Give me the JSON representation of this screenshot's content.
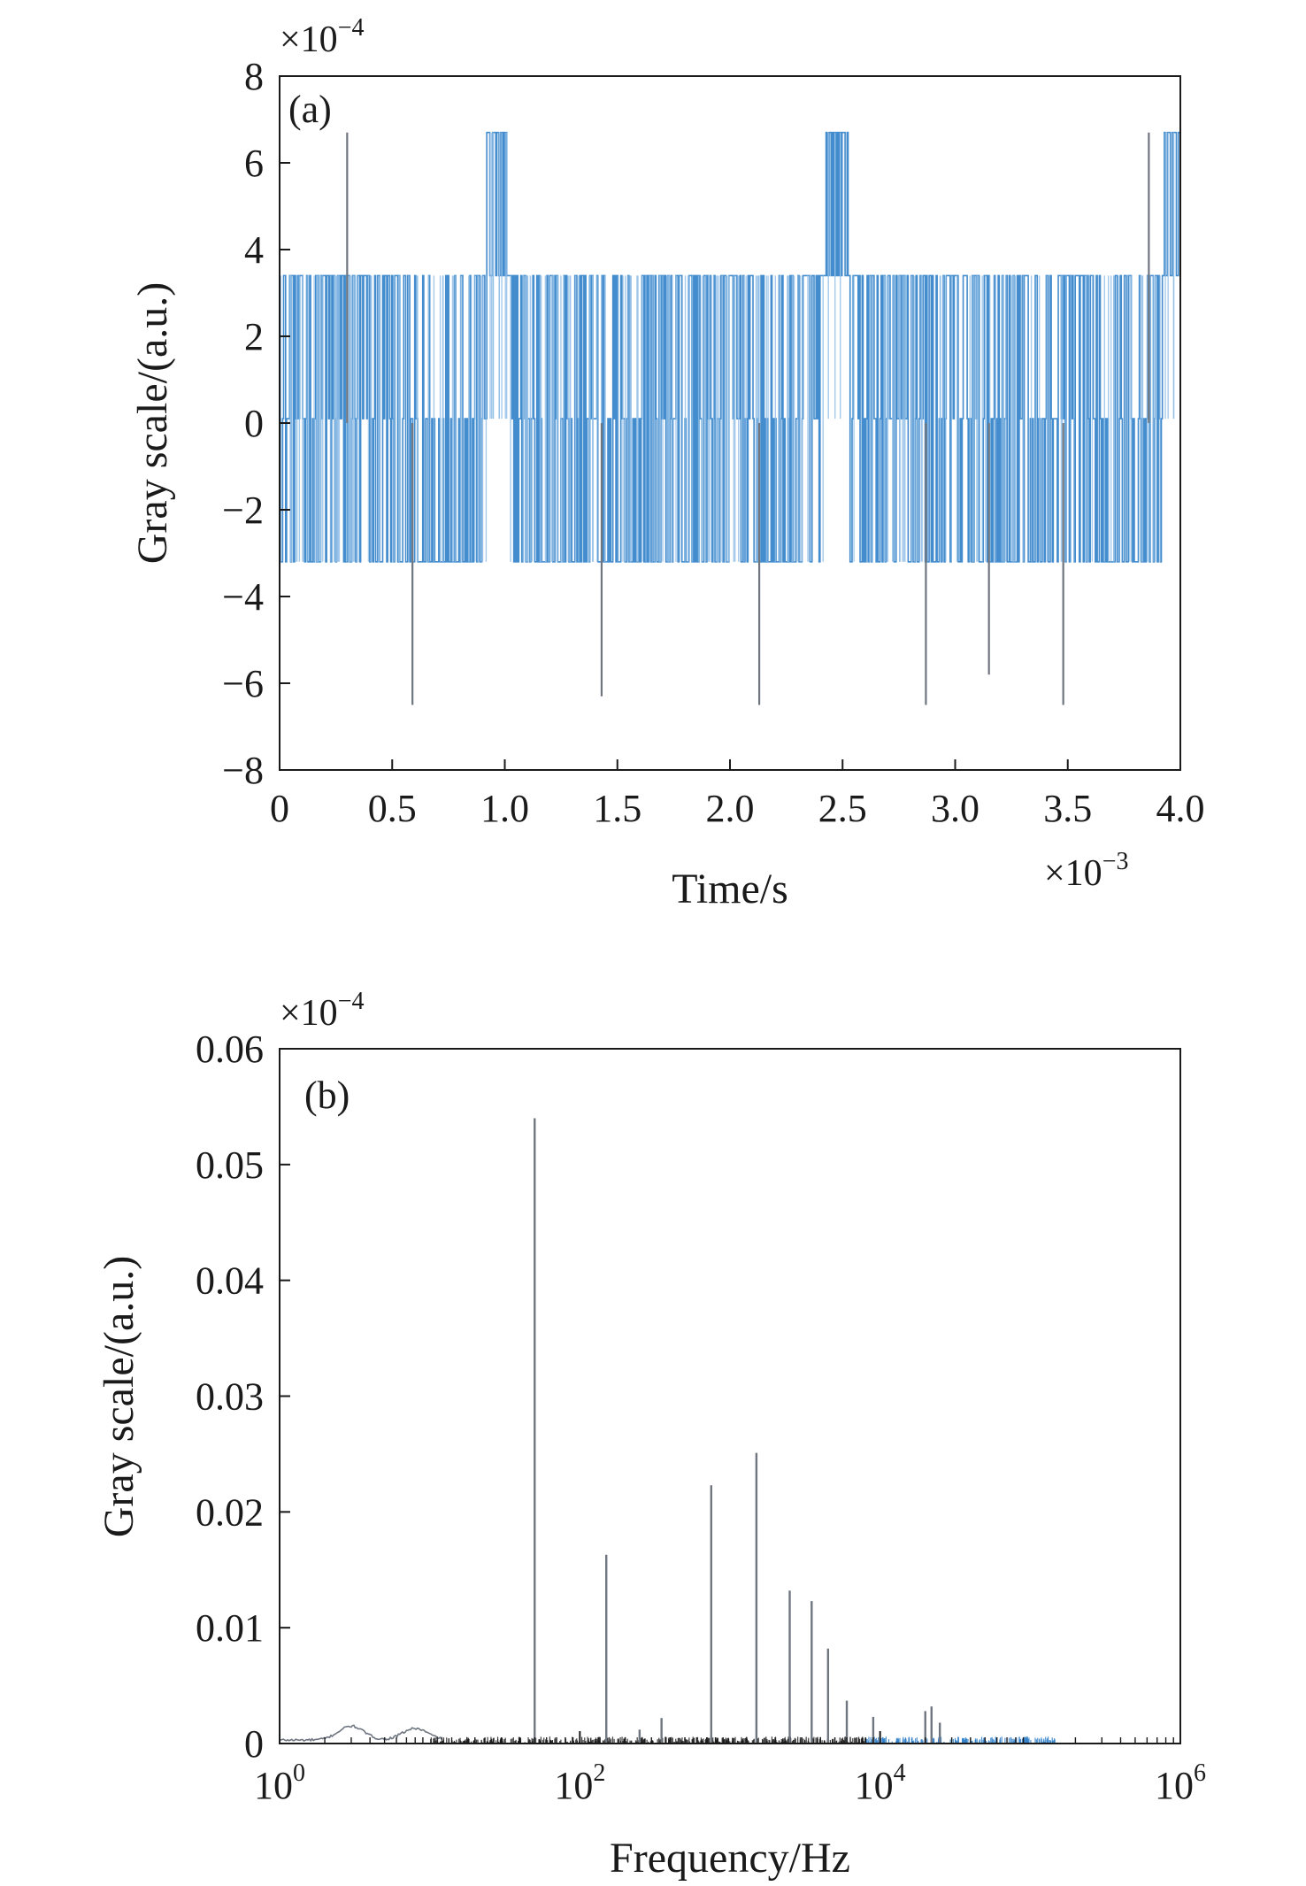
{
  "figure": {
    "colors": {
      "signal": "#2f7fc8",
      "signal_light": "#8fbde6",
      "spike": "#6f7680",
      "axis": "#1a1a1a"
    }
  },
  "chart_data": [
    {
      "type": "line",
      "panel_label": "(a)",
      "xlabel": "Time/s",
      "ylabel": "Gray scale/(a.u.)",
      "x_multiplier": {
        "base": "×10",
        "exp": "−3"
      },
      "y_multiplier": {
        "base": "×10",
        "exp": "−4"
      },
      "xlim": [
        0,
        4.0
      ],
      "ylim": [
        -8,
        8
      ],
      "xticks": [
        0,
        0.5,
        1.0,
        1.5,
        2.0,
        2.5,
        3.0,
        3.5,
        4.0
      ],
      "xtick_labels": [
        "0",
        "0.5",
        "1.0",
        "1.5",
        "2.0",
        "2.5",
        "3.0",
        "3.5",
        "4.0"
      ],
      "yticks": [
        -8,
        -6,
        -4,
        -2,
        0,
        2,
        4,
        6,
        8
      ],
      "ytick_labels": [
        "−8",
        "−6",
        "−4",
        "−2",
        "0",
        "2",
        "4",
        "6",
        "8"
      ],
      "grid": false,
      "signal_levels": [
        -3.2,
        0.1,
        3.4,
        6.7
      ],
      "high_bursts": [
        [
          0.92,
          1.02
        ],
        [
          2.42,
          2.52
        ],
        [
          3.92,
          4.0
        ]
      ],
      "negative_dense_regions": [
        [
          0.55,
          0.72
        ],
        [
          1.4,
          1.6
        ],
        [
          2.1,
          2.3
        ]
      ],
      "spikes": [
        {
          "x": 0.3,
          "y": 6.7
        },
        {
          "x": 0.59,
          "y": -6.5
        },
        {
          "x": 1.43,
          "y": -6.3
        },
        {
          "x": 2.13,
          "y": -6.5
        },
        {
          "x": 2.87,
          "y": -6.5
        },
        {
          "x": 3.15,
          "y": -5.8
        },
        {
          "x": 3.48,
          "y": -6.5
        },
        {
          "x": 3.86,
          "y": 6.7
        }
      ]
    },
    {
      "type": "bar",
      "panel_label": "(b)",
      "xlabel": "Frequency/Hz",
      "ylabel": "Gray scale/(a.u.)",
      "y_multiplier": {
        "base": "×10",
        "exp": "−4"
      },
      "xscale": "log",
      "xlim": [
        1,
        1000000
      ],
      "ylim": [
        0,
        0.06
      ],
      "xticks": [
        1,
        100,
        10000,
        1000000
      ],
      "xtick_labels": [
        {
          "base": "10",
          "exp": "0"
        },
        {
          "base": "10",
          "exp": "2"
        },
        {
          "base": "10",
          "exp": "4"
        },
        {
          "base": "10",
          "exp": "6"
        }
      ],
      "yticks": [
        0,
        0.01,
        0.02,
        0.03,
        0.04,
        0.05,
        0.06
      ],
      "ytick_labels": [
        "0",
        "0.01",
        "0.02",
        "0.03",
        "0.04",
        "0.05",
        "0.06"
      ],
      "grid": false,
      "peaks": [
        {
          "x": 50,
          "y": 0.054
        },
        {
          "x": 150,
          "y": 0.0163
        },
        {
          "x": 250,
          "y": 0.0012
        },
        {
          "x": 350,
          "y": 0.0022
        },
        {
          "x": 750,
          "y": 0.0223
        },
        {
          "x": 1500,
          "y": 0.0251
        },
        {
          "x": 2500,
          "y": 0.0132
        },
        {
          "x": 3500,
          "y": 0.0123
        },
        {
          "x": 4500,
          "y": 0.0082
        },
        {
          "x": 6000,
          "y": 0.0037
        },
        {
          "x": 9000,
          "y": 0.0023
        },
        {
          "x": 20000,
          "y": 0.0028
        },
        {
          "x": 22000,
          "y": 0.0032
        },
        {
          "x": 25000,
          "y": 0.0018
        }
      ],
      "noise_floor": {
        "x_range": [
          1,
          150000
        ],
        "level": 0.0004
      },
      "low_freq_bumps": [
        {
          "x": 3,
          "y": 0.0012
        },
        {
          "x": 8,
          "y": 0.001
        }
      ]
    }
  ]
}
